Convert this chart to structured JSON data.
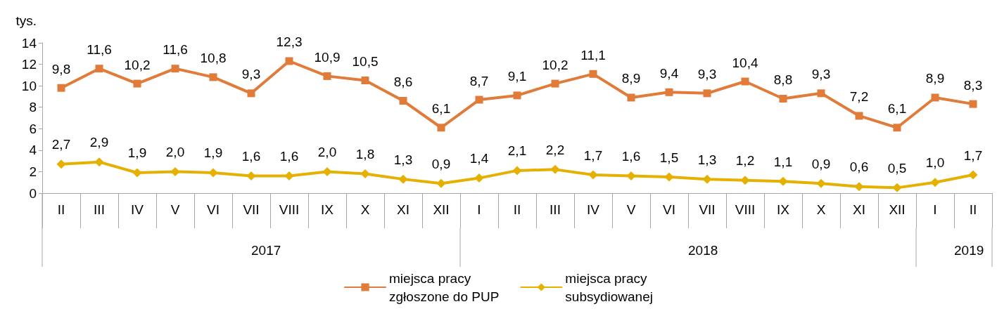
{
  "chart_data": {
    "type": "line",
    "ylabel": "tys.",
    "categories": [
      "II",
      "III",
      "IV",
      "V",
      "VI",
      "VII",
      "VIII",
      "IX",
      "X",
      "XI",
      "XII",
      "I",
      "II",
      "III",
      "IV",
      "V",
      "VI",
      "VII",
      "VIII",
      "IX",
      "X",
      "XI",
      "XII",
      "I",
      "II"
    ],
    "series": [
      {
        "name": "miejsca pracy\nzgłoszone do PUP",
        "color": "#e07b39",
        "marker": "square",
        "values": [
          9.8,
          11.6,
          10.2,
          11.6,
          10.8,
          9.3,
          12.3,
          10.9,
          10.5,
          8.6,
          6.1,
          8.7,
          9.1,
          10.2,
          11.1,
          8.9,
          9.4,
          9.3,
          10.4,
          8.8,
          9.3,
          7.2,
          6.1,
          8.9,
          8.3
        ],
        "value_labels": [
          "9,8",
          "11,6",
          "10,2",
          "11,6",
          "10,8",
          "9,3",
          "12,3",
          "10,9",
          "10,5",
          "8,6",
          "6,1",
          "8,7",
          "9,1",
          "10,2",
          "11,1",
          "8,9",
          "9,4",
          "9,3",
          "10,4",
          "8,8",
          "9,3",
          "7,2",
          "6,1",
          "8,9",
          "8,3"
        ]
      },
      {
        "name": "miejsca pracy\nsubsydiowanej",
        "color": "#e6b000",
        "marker": "diamond",
        "values": [
          2.7,
          2.9,
          1.9,
          2.0,
          1.9,
          1.6,
          1.6,
          2.0,
          1.8,
          1.3,
          0.9,
          1.4,
          2.1,
          2.2,
          1.7,
          1.6,
          1.5,
          1.3,
          1.2,
          1.1,
          0.9,
          0.6,
          0.5,
          1.0,
          1.7
        ],
        "value_labels": [
          "2,7",
          "2,9",
          "1,9",
          "2,0",
          "1,9",
          "1,6",
          "1,6",
          "2,0",
          "1,8",
          "1,3",
          "0,9",
          "1,4",
          "2,1",
          "2,2",
          "1,7",
          "1,6",
          "1,5",
          "1,3",
          "1,2",
          "1,1",
          "0,9",
          "0,6",
          "0,5",
          "1,0",
          "1,7"
        ]
      }
    ],
    "ylim": [
      0,
      14
    ],
    "yticks": [
      0,
      2,
      4,
      6,
      8,
      10,
      12,
      14
    ],
    "annotations": [
      "2017",
      "2018",
      "2019"
    ],
    "grid": false,
    "legend": "bottom",
    "line_style": "solid"
  }
}
